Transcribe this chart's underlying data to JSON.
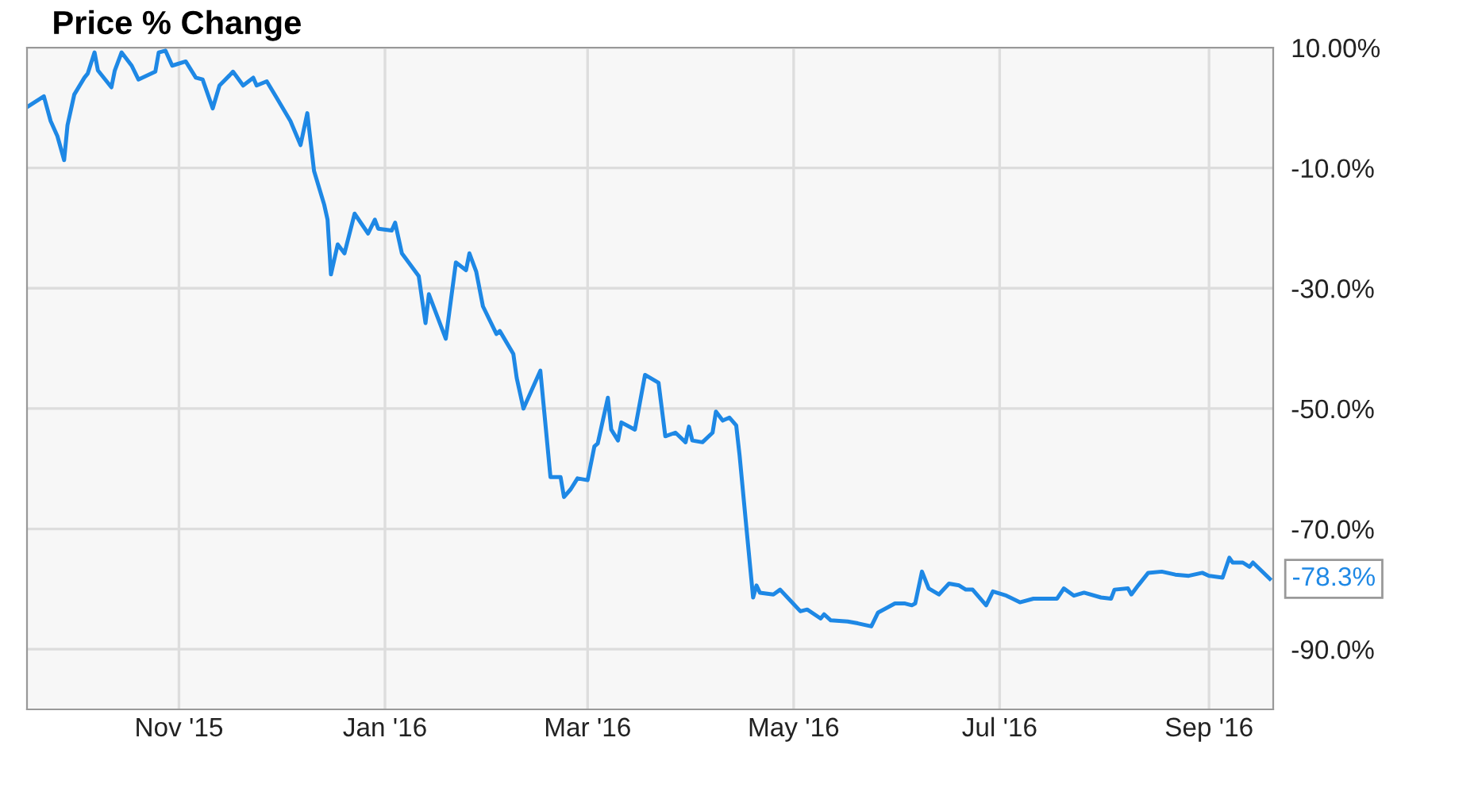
{
  "chart_data": {
    "type": "line",
    "title": "Price % Change",
    "x": [
      "2015-09-17",
      "2015-09-22",
      "2015-09-24",
      "2015-09-26",
      "2015-09-28",
      "2015-09-29",
      "2015-10-01",
      "2015-10-04",
      "2015-10-05",
      "2015-10-07",
      "2015-10-08",
      "2015-10-12",
      "2015-10-13",
      "2015-10-15",
      "2015-10-18",
      "2015-10-20",
      "2015-10-25",
      "2015-10-26",
      "2015-10-28",
      "2015-10-30",
      "2015-11-03",
      "2015-11-06",
      "2015-11-08",
      "2015-11-11",
      "2015-11-13",
      "2015-11-16",
      "2015-11-17",
      "2015-11-20",
      "2015-11-23",
      "2015-11-24",
      "2015-11-27",
      "2015-11-30",
      "2015-12-04",
      "2015-12-07",
      "2015-12-09",
      "2015-12-11",
      "2015-12-14",
      "2015-12-15",
      "2015-12-16",
      "2015-12-18",
      "2015-12-20",
      "2015-12-23",
      "2015-12-27",
      "2015-12-29",
      "2015-12-30",
      "2016-01-03",
      "2016-01-04",
      "2016-01-06",
      "2016-01-11",
      "2016-01-13",
      "2016-01-14",
      "2016-01-19",
      "2016-01-22",
      "2016-01-25",
      "2016-01-26",
      "2016-01-28",
      "2016-01-30",
      "2016-02-03",
      "2016-02-04",
      "2016-02-08",
      "2016-02-09",
      "2016-02-11",
      "2016-02-16",
      "2016-02-19",
      "2016-02-22",
      "2016-02-23",
      "2016-02-25",
      "2016-02-27",
      "2016-03-01",
      "2016-03-03",
      "2016-03-04",
      "2016-03-07",
      "2016-03-08",
      "2016-03-10",
      "2016-03-11",
      "2016-03-15",
      "2016-03-18",
      "2016-03-22",
      "2016-03-24",
      "2016-03-27",
      "2016-03-30",
      "2016-03-31",
      "2016-04-01",
      "2016-04-04",
      "2016-04-07",
      "2016-04-08",
      "2016-04-10",
      "2016-04-12",
      "2016-04-14",
      "2016-04-15",
      "2016-04-17",
      "2016-04-19",
      "2016-04-20",
      "2016-04-21",
      "2016-04-25",
      "2016-04-27",
      "2016-04-30",
      "2016-05-03",
      "2016-05-05",
      "2016-05-09",
      "2016-05-10",
      "2016-05-12",
      "2016-05-17",
      "2016-05-20",
      "2016-05-24",
      "2016-05-26",
      "2016-05-31",
      "2016-06-03",
      "2016-06-05",
      "2016-06-06",
      "2016-06-08",
      "2016-06-10",
      "2016-06-13",
      "2016-06-16",
      "2016-06-19",
      "2016-06-21",
      "2016-06-23",
      "2016-06-27",
      "2016-06-29",
      "2016-07-03",
      "2016-07-07",
      "2016-07-11",
      "2016-07-14",
      "2016-07-18",
      "2016-07-20",
      "2016-07-23",
      "2016-07-26",
      "2016-07-31",
      "2016-08-03",
      "2016-08-04",
      "2016-08-08",
      "2016-08-09",
      "2016-08-11",
      "2016-08-14",
      "2016-08-18",
      "2016-08-22",
      "2016-08-26",
      "2016-08-30",
      "2016-09-01",
      "2016-09-05",
      "2016-09-07",
      "2016-09-08",
      "2016-09-11",
      "2016-09-13",
      "2016-09-14",
      "2016-09-19"
    ],
    "series": [
      {
        "color": "#1e88e5",
        "values": [
          0.1,
          1.9,
          -2.2,
          -4.7,
          -8.7,
          -2.9,
          2.2,
          5,
          5.7,
          9.2,
          6.2,
          3.4,
          6.2,
          9.2,
          7,
          4.7,
          6,
          9.2,
          9.5,
          7,
          7.7,
          5,
          4.7,
          -0.1,
          3.7,
          5.4,
          6,
          3.7,
          5,
          3.7,
          4.4,
          1.6,
          -2.2,
          -6.2,
          -0.9,
          -10.5,
          -16.1,
          -18.6,
          -27.7,
          -22.7,
          -24.2,
          -17.6,
          -20.9,
          -18.6,
          -20.1,
          -20.4,
          -19.1,
          -24.2,
          -28,
          -35.8,
          -31,
          -38.4,
          -25.7,
          -27,
          -24.2,
          -27.2,
          -33,
          -37.6,
          -37.1,
          -40.9,
          -44.9,
          -50,
          -43.7,
          -61.4,
          -61.4,
          -64.7,
          -63.4,
          -61.6,
          -61.9,
          -56.3,
          -55.8,
          -48.2,
          -53.5,
          -55.3,
          -52.3,
          -53.5,
          -44.4,
          -45.7,
          -54.6,
          -54,
          -55.6,
          -53,
          -55.3,
          -55.6,
          -54,
          -50.5,
          -52,
          -51.5,
          -52.8,
          -57.8,
          -69.7,
          -81.4,
          -79.4,
          -80.6,
          -80.9,
          -80.1,
          -81.9,
          -83.7,
          -83.4,
          -84.9,
          -84.2,
          -85.2,
          -85.4,
          -85.7,
          -86.2,
          -83.9,
          -82.4,
          -82.4,
          -82.7,
          -82.4,
          -77.1,
          -79.9,
          -80.9,
          -79.1,
          -79.4,
          -80.1,
          -80.1,
          -82.7,
          -80.4,
          -81.1,
          -82.2,
          -81.6,
          -81.6,
          -81.6,
          -79.9,
          -81.1,
          -80.6,
          -81.4,
          -81.6,
          -80.1,
          -79.9,
          -80.9,
          -79.4,
          -77.3,
          -77.1,
          -77.6,
          -77.8,
          -77.3,
          -77.8,
          -78.1,
          -74.8,
          -75.6,
          -75.6,
          -76.3,
          -75.6,
          -78.3
        ]
      }
    ],
    "xlim": [
      "2015-09-17",
      "2016-09-20"
    ],
    "xticks": [
      {
        "value": "2015-11-01",
        "label": "Nov '15"
      },
      {
        "value": "2016-01-01",
        "label": "Jan '16"
      },
      {
        "value": "2016-03-01",
        "label": "Mar '16"
      },
      {
        "value": "2016-05-01",
        "label": "May '16"
      },
      {
        "value": "2016-07-01",
        "label": "Jul '16"
      },
      {
        "value": "2016-09-01",
        "label": "Sep '16"
      }
    ],
    "ylim": [
      -100,
      10
    ],
    "yticks": [
      {
        "value": 10,
        "label": "10.00%"
      },
      {
        "value": -10,
        "label": "-10.0%"
      },
      {
        "value": -30,
        "label": "-30.0%"
      },
      {
        "value": -50,
        "label": "-50.0%"
      },
      {
        "value": -70,
        "label": "-70.0%"
      },
      {
        "value": -90,
        "label": "-90.0%"
      }
    ],
    "annotations": [
      {
        "text": "-78.3%",
        "x": "2016-09-19",
        "y": -78.3
      }
    ],
    "grid": true,
    "marker": "none",
    "line_style": "solid"
  }
}
